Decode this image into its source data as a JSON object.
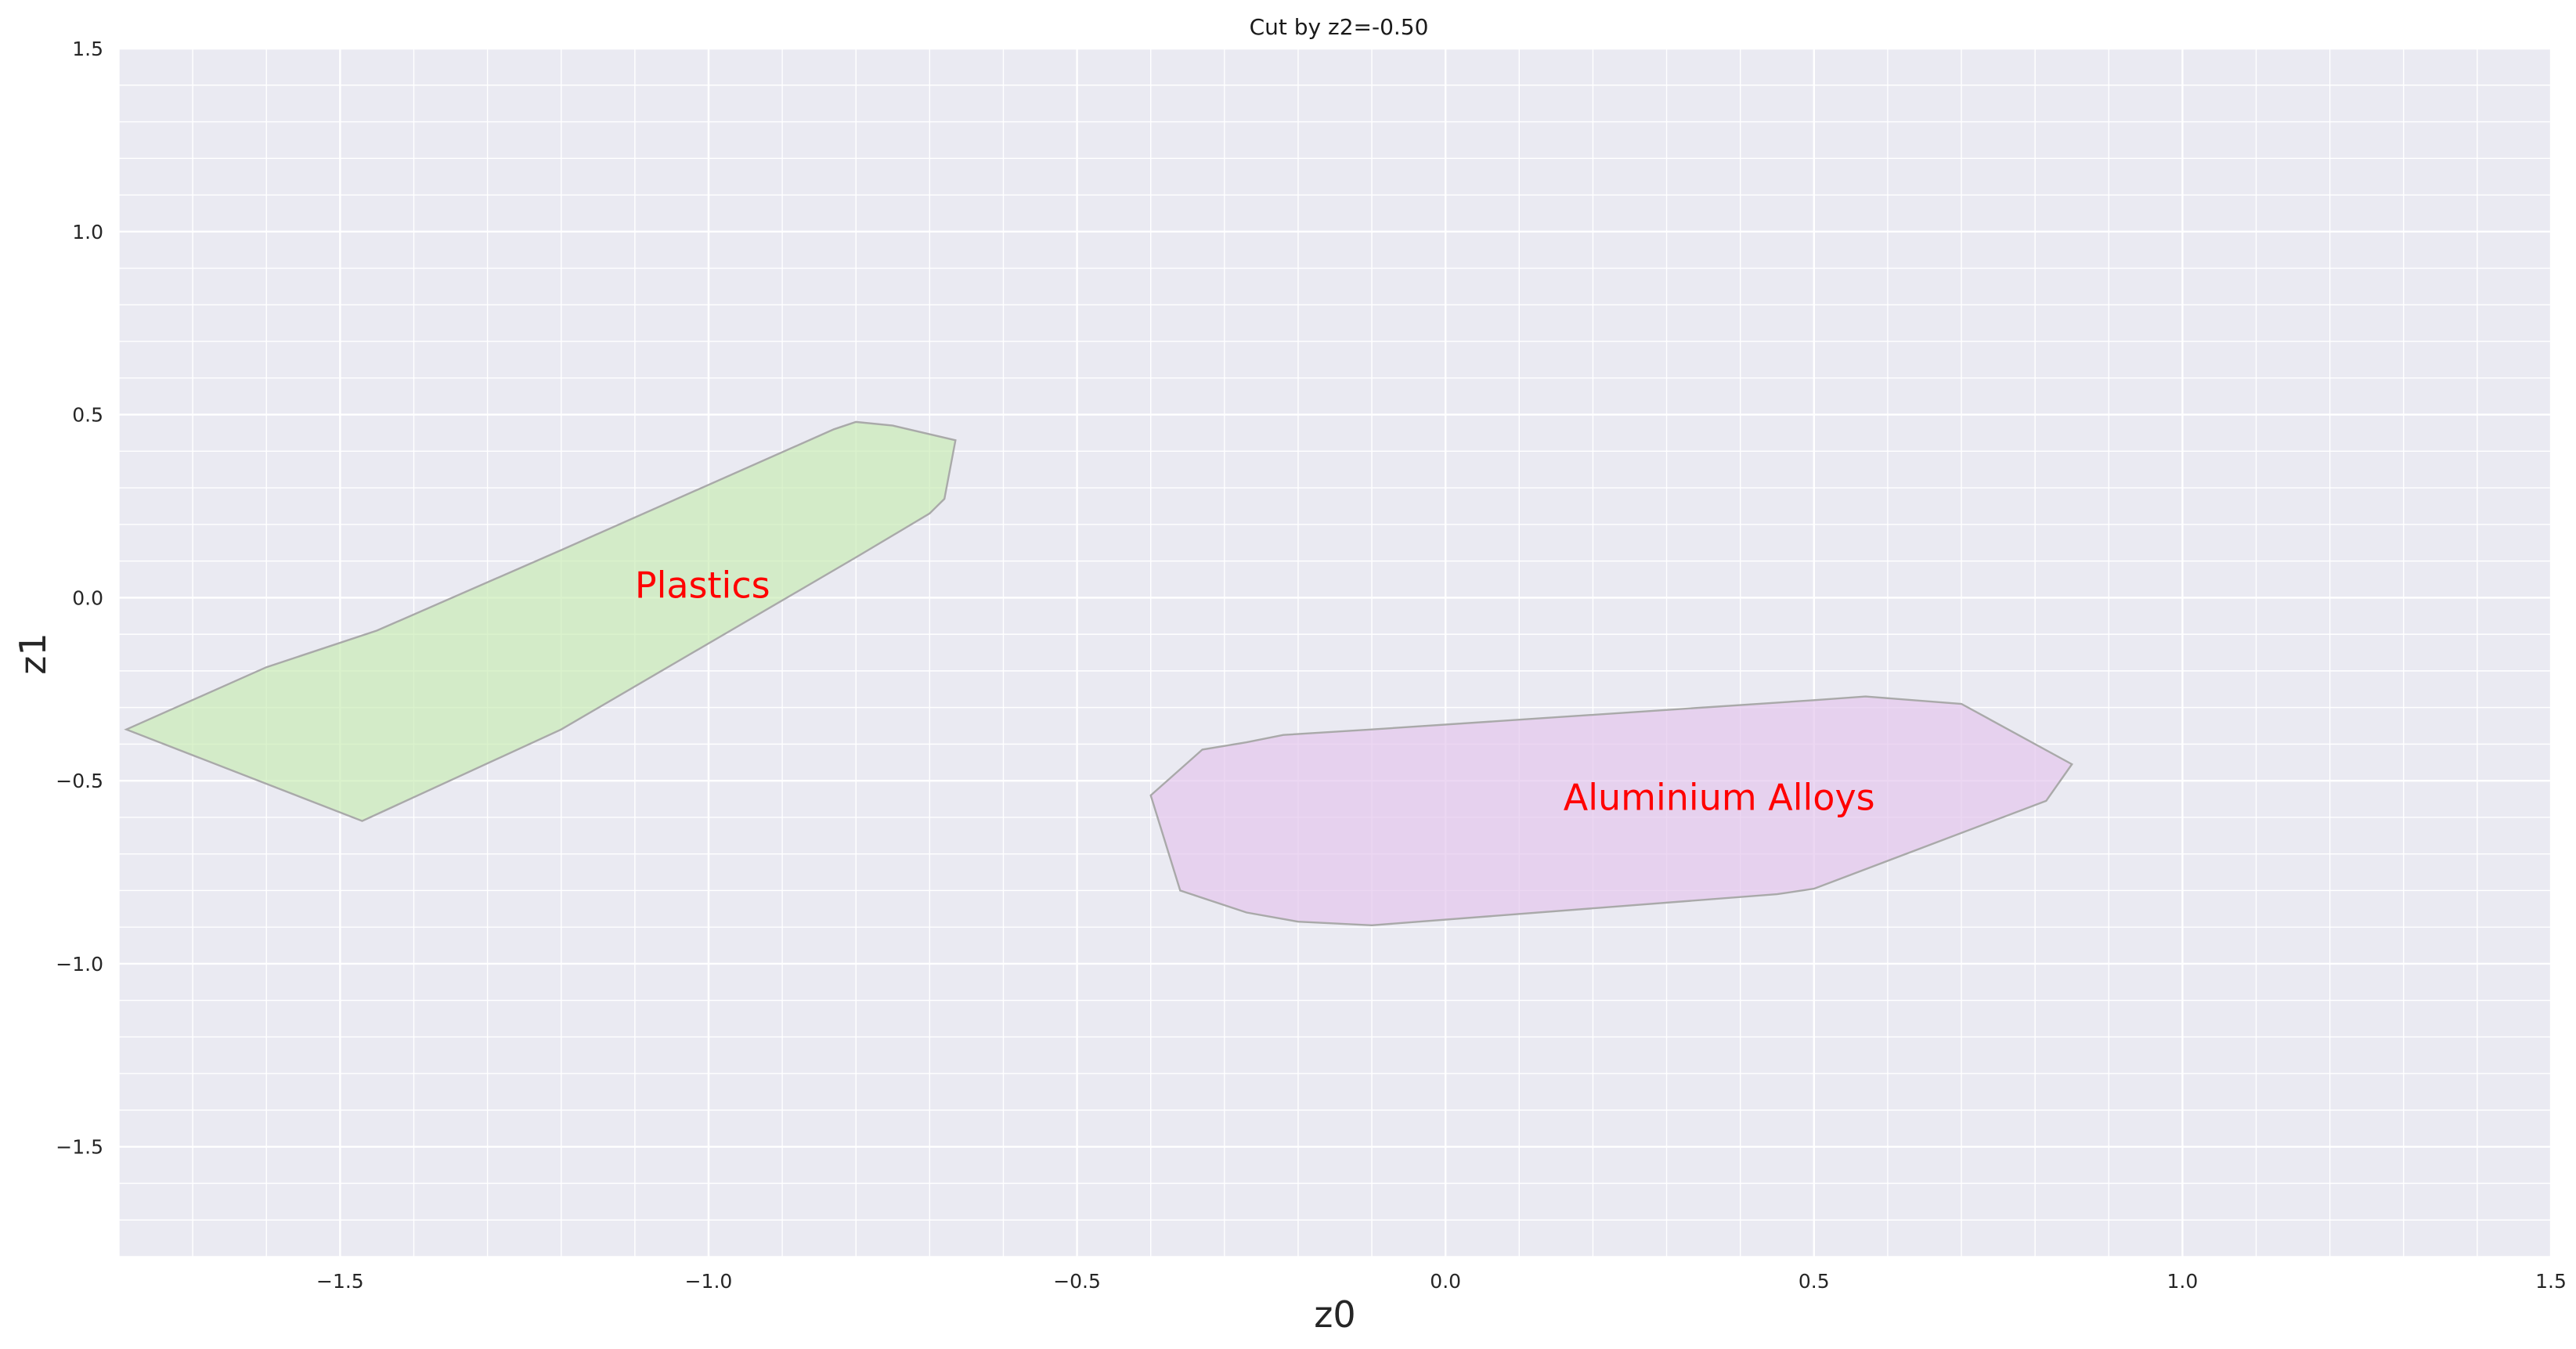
{
  "chart_data": {
    "type": "area",
    "title": "Cut by z2=-0.50",
    "xlabel": "z0",
    "ylabel": "z1",
    "xlim": [
      -1.8,
      1.5
    ],
    "ylim": [
      -1.8,
      1.5
    ],
    "major_x_ticks": [
      -1.5,
      -1.0,
      -0.5,
      0.0,
      0.5,
      1.0,
      1.5
    ],
    "major_y_ticks": [
      -1.5,
      -1.0,
      -0.5,
      0.0,
      0.5,
      1.0,
      1.5
    ],
    "x_tick_labels": [
      "−1.5",
      "−1.0",
      "−0.5",
      "0.0",
      "0.5",
      "1.0",
      "1.5"
    ],
    "y_tick_labels": [
      "−1.5",
      "−1.0",
      "−0.5",
      "0.0",
      "0.5",
      "1.0",
      "1.5"
    ],
    "grid": true,
    "minor_grid": true,
    "background_color": "#EAEAF2",
    "grid_color": "#FFFFFF",
    "edge_color": "#A9A9A9",
    "annotation_color": "#FF0000",
    "regions": [
      {
        "name": "Plastics",
        "label": "Plastics",
        "label_at": [
          -1.1,
          0.0
        ],
        "fill_color": "#C6EBB0",
        "opacity": 0.65,
        "polygon": [
          [
            -1.79,
            -0.36
          ],
          [
            -1.6,
            -0.19
          ],
          [
            -1.45,
            -0.09
          ],
          [
            -1.2,
            0.13
          ],
          [
            -0.83,
            0.46
          ],
          [
            -0.8,
            0.48
          ],
          [
            -0.75,
            0.47
          ],
          [
            -0.665,
            0.43
          ],
          [
            -0.68,
            0.27
          ],
          [
            -0.7,
            0.23
          ],
          [
            -0.8,
            0.11
          ],
          [
            -1.2,
            -0.36
          ],
          [
            -1.47,
            -0.61
          ]
        ]
      },
      {
        "name": "Aluminium Alloys",
        "label": "Aluminium Alloys",
        "label_at": [
          0.16,
          -0.58
        ],
        "fill_color": "#E4C6EC",
        "opacity": 0.7,
        "polygon": [
          [
            -0.4,
            -0.54
          ],
          [
            -0.33,
            -0.415
          ],
          [
            -0.27,
            -0.395
          ],
          [
            -0.22,
            -0.375
          ],
          [
            -0.1,
            -0.36
          ],
          [
            0.5,
            -0.28
          ],
          [
            0.57,
            -0.27
          ],
          [
            0.7,
            -0.29
          ],
          [
            0.85,
            -0.455
          ],
          [
            0.815,
            -0.555
          ],
          [
            0.5,
            -0.795
          ],
          [
            0.45,
            -0.81
          ],
          [
            -0.1,
            -0.895
          ],
          [
            -0.2,
            -0.885
          ],
          [
            -0.27,
            -0.86
          ],
          [
            -0.36,
            -0.8
          ]
        ]
      }
    ]
  }
}
